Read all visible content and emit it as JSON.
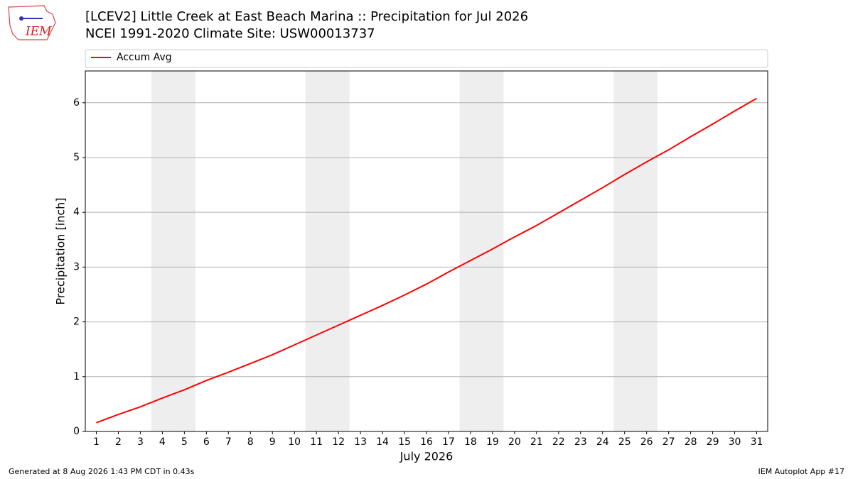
{
  "logo_text": "IEM",
  "chart_data": {
    "type": "line",
    "title": "[LCEV2] Little Creek at East Beach Marina :: Precipitation for Jul 2026",
    "subtitle": "NCEI 1991-2020 Climate Site: USW00013737",
    "x_label": "July 2026",
    "y_label": "Precipitation [inch]",
    "x": [
      1,
      2,
      3,
      4,
      5,
      6,
      7,
      8,
      9,
      10,
      11,
      12,
      13,
      14,
      15,
      16,
      17,
      18,
      19,
      20,
      21,
      22,
      23,
      24,
      25,
      26,
      27,
      28,
      29,
      30,
      31
    ],
    "series": [
      {
        "name": "Accum Avg",
        "color": "#ff0000",
        "values": [
          0.16,
          0.31,
          0.45,
          0.61,
          0.76,
          0.93,
          1.08,
          1.24,
          1.4,
          1.58,
          1.76,
          1.94,
          2.12,
          2.3,
          2.49,
          2.69,
          2.91,
          3.12,
          3.33,
          3.55,
          3.76,
          3.99,
          4.22,
          4.45,
          4.69,
          4.92,
          5.14,
          5.38,
          5.61,
          5.85,
          6.08
        ]
      }
    ],
    "xlim": [
      0.5,
      31.5
    ],
    "ylim": [
      0,
      6.58
    ],
    "xticks": [
      1,
      2,
      3,
      4,
      5,
      6,
      7,
      8,
      9,
      10,
      11,
      12,
      13,
      14,
      15,
      16,
      17,
      18,
      19,
      20,
      21,
      22,
      23,
      24,
      25,
      26,
      27,
      28,
      29,
      30,
      31
    ],
    "yticks": [
      0,
      1,
      2,
      3,
      4,
      5,
      6
    ],
    "shaded_ranges": [
      [
        3.5,
        5.5
      ],
      [
        10.5,
        12.5
      ],
      [
        17.5,
        19.5
      ],
      [
        24.5,
        26.5
      ]
    ],
    "shade_color": "#eeeeee",
    "grid": true,
    "legend": "top",
    "footer_left": "Generated at 8 Aug 2026 1:43 PM CDT in 0.43s",
    "footer_right": "IEM Autoplot App #17"
  }
}
